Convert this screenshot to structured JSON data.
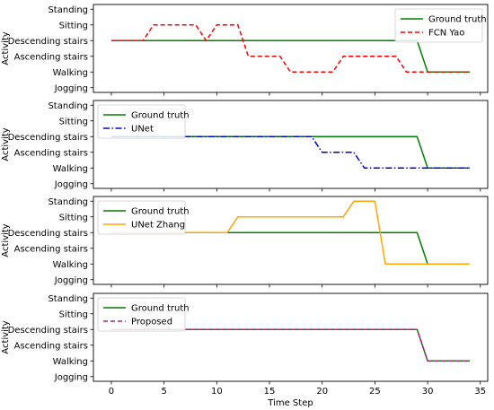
{
  "chart_data": {
    "type": "line",
    "shared_xlabel": "Time Step",
    "x_ticks": [
      0,
      5,
      10,
      15,
      20,
      25,
      30,
      35
    ],
    "xlim": [
      -1.7,
      35.7
    ],
    "y_categories": [
      "Jogging",
      "Walking",
      "Ascending stairs",
      "Descending stairs",
      "Sitting",
      "Standing"
    ],
    "ylim": [
      -0.3,
      5.3
    ],
    "grid": false,
    "colors": {
      "ground_truth": "#008000",
      "fcn_yao": "#ff0000",
      "unet": "#0000cd",
      "unet_zhang": "#ffa500",
      "proposed": "#c71585"
    },
    "panels": [
      {
        "ylabel": "Activity",
        "legend_position": "top-right",
        "series": [
          {
            "name": "Ground truth",
            "style": "solid",
            "color_key": "ground_truth",
            "x": [
              0,
              29,
              30,
              34
            ],
            "y": [
              "Descending stairs",
              "Descending stairs",
              "Walking",
              "Walking"
            ]
          },
          {
            "name": "FCN Yao",
            "style": "dashed",
            "color_key": "fcn_yao",
            "x": [
              0,
              3,
              4,
              8,
              9,
              10,
              12,
              13,
              16,
              17,
              21,
              22,
              27,
              28,
              34
            ],
            "y": [
              "Descending stairs",
              "Descending stairs",
              "Sitting",
              "Sitting",
              "Descending stairs",
              "Sitting",
              "Sitting",
              "Ascending stairs",
              "Ascending stairs",
              "Walking",
              "Walking",
              "Ascending stairs",
              "Ascending stairs",
              "Walking",
              "Walking"
            ]
          }
        ]
      },
      {
        "ylabel": "Activity",
        "legend_position": "top-left",
        "series": [
          {
            "name": "Ground truth",
            "style": "solid",
            "color_key": "ground_truth",
            "x": [
              0,
              29,
              30,
              34
            ],
            "y": [
              "Descending stairs",
              "Descending stairs",
              "Walking",
              "Walking"
            ]
          },
          {
            "name": "UNet",
            "style": "dashdot",
            "color_key": "unet",
            "x": [
              0,
              19,
              20,
              23,
              24,
              34
            ],
            "y": [
              "Descending stairs",
              "Descending stairs",
              "Ascending stairs",
              "Ascending stairs",
              "Walking",
              "Walking"
            ]
          }
        ]
      },
      {
        "ylabel": "Activity",
        "legend_position": "top-left",
        "series": [
          {
            "name": "Ground truth",
            "style": "solid",
            "color_key": "ground_truth",
            "x": [
              0,
              29,
              30,
              34
            ],
            "y": [
              "Descending stairs",
              "Descending stairs",
              "Walking",
              "Walking"
            ]
          },
          {
            "name": "UNet Zhang",
            "style": "solid",
            "color_key": "unet_zhang",
            "x": [
              0,
              11,
              12,
              22,
              23,
              25,
              26,
              34
            ],
            "y": [
              "Descending stairs",
              "Descending stairs",
              "Sitting",
              "Sitting",
              "Standing",
              "Standing",
              "Walking",
              "Walking"
            ]
          }
        ]
      },
      {
        "ylabel": "Activity",
        "legend_position": "top-left",
        "series": [
          {
            "name": "Ground truth",
            "style": "solid",
            "color_key": "ground_truth",
            "x": [
              0,
              29,
              30,
              34
            ],
            "y": [
              "Descending stairs",
              "Descending stairs",
              "Walking",
              "Walking"
            ]
          },
          {
            "name": "Proposed",
            "style": "dashed",
            "color_key": "proposed",
            "x": [
              0,
              29,
              30,
              34
            ],
            "y": [
              "Descending stairs",
              "Descending stairs",
              "Walking",
              "Walking"
            ]
          }
        ]
      }
    ]
  }
}
